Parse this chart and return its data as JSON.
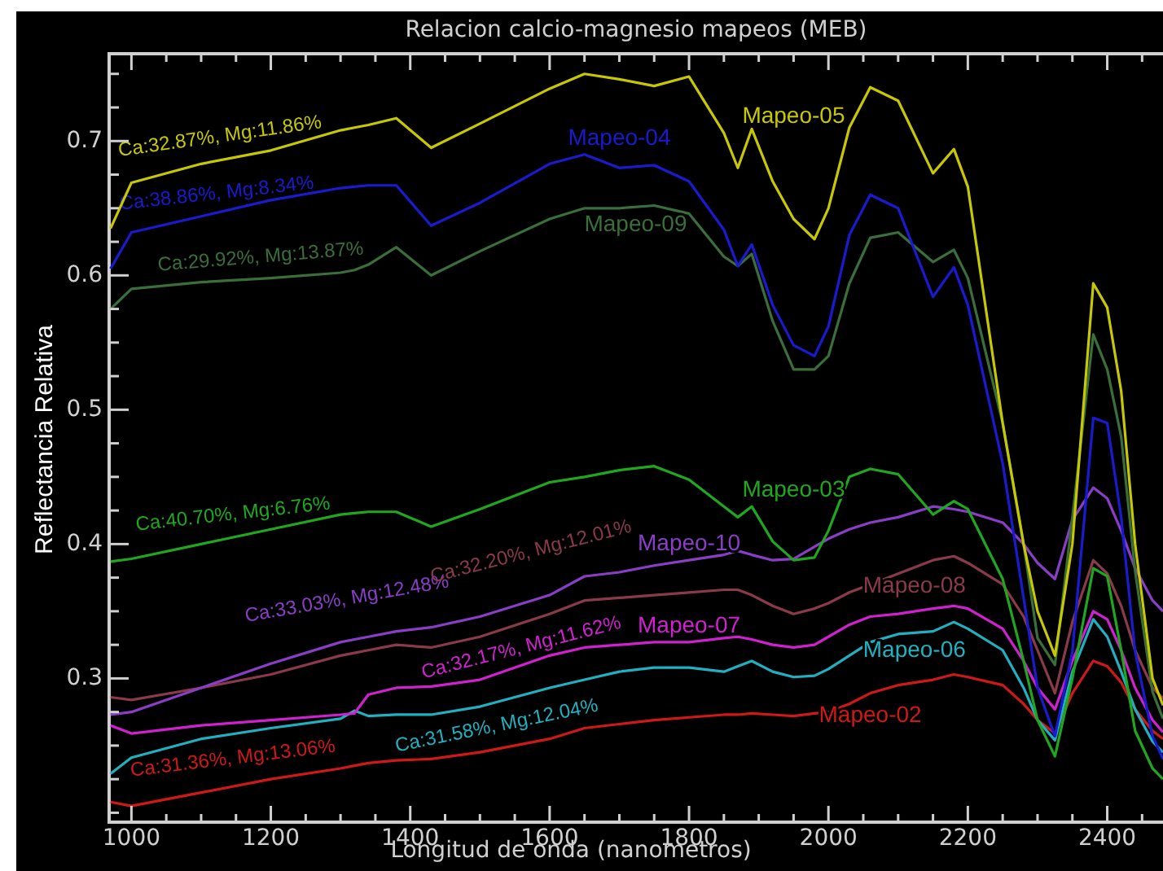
{
  "chart_data": {
    "type": "line",
    "title": "Relacion calcio-magnesio mapeos (MEB)",
    "xlabel": "Longitud de onda (nanometros)",
    "ylabel": "Reflectancia Relativa",
    "x": [
      970,
      1000,
      1100,
      1200,
      1300,
      1320,
      1340,
      1380,
      1430,
      1500,
      1600,
      1650,
      1700,
      1750,
      1800,
      1850,
      1870,
      1890,
      1920,
      1950,
      1980,
      2000,
      2030,
      2060,
      2100,
      2150,
      2180,
      2200,
      2250,
      2280,
      2300,
      2325,
      2350,
      2380,
      2400,
      2420,
      2440,
      2465,
      2480
    ],
    "series": [
      {
        "name": "Mapeo-05",
        "color": "#c8c800",
        "values": [
          0.635,
          0.669,
          0.683,
          0.693,
          0.708,
          0.71,
          0.712,
          0.717,
          0.695,
          0.713,
          0.739,
          0.75,
          0.746,
          0.741,
          0.748,
          0.706,
          0.68,
          0.709,
          0.67,
          0.642,
          0.627,
          0.65,
          0.71,
          0.74,
          0.73,
          0.676,
          0.694,
          0.666,
          0.49,
          0.4,
          0.35,
          0.317,
          0.4,
          0.594,
          0.576,
          0.514,
          0.4,
          0.3,
          0.28
        ]
      },
      {
        "name": "Mapeo-04",
        "color": "#1a1ad0",
        "values": [
          0.605,
          0.632,
          0.644,
          0.656,
          0.665,
          0.666,
          0.667,
          0.667,
          0.637,
          0.654,
          0.683,
          0.69,
          0.68,
          0.682,
          0.67,
          0.634,
          0.607,
          0.623,
          0.578,
          0.548,
          0.54,
          0.562,
          0.63,
          0.66,
          0.65,
          0.584,
          0.606,
          0.578,
          0.46,
          0.36,
          0.293,
          0.257,
          0.32,
          0.494,
          0.49,
          0.42,
          0.32,
          0.257,
          0.24
        ]
      },
      {
        "name": "Mapeo-09",
        "color": "#3a6e3a",
        "values": [
          0.575,
          0.59,
          0.595,
          0.598,
          0.602,
          0.604,
          0.608,
          0.621,
          0.6,
          0.618,
          0.642,
          0.65,
          0.65,
          0.652,
          0.646,
          0.614,
          0.607,
          0.616,
          0.566,
          0.53,
          0.53,
          0.54,
          0.594,
          0.628,
          0.632,
          0.61,
          0.619,
          0.598,
          0.49,
          0.4,
          0.33,
          0.31,
          0.42,
          0.556,
          0.53,
          0.48,
          0.38,
          0.29,
          0.27
        ]
      },
      {
        "name": "Mapeo-03",
        "color": "#1fa81f",
        "values": [
          0.387,
          0.389,
          0.4,
          0.411,
          0.422,
          0.423,
          0.424,
          0.424,
          0.413,
          0.426,
          0.446,
          0.45,
          0.455,
          0.458,
          0.448,
          0.428,
          0.42,
          0.428,
          0.402,
          0.388,
          0.39,
          0.41,
          0.45,
          0.456,
          0.452,
          0.422,
          0.432,
          0.426,
          0.374,
          0.313,
          0.269,
          0.242,
          0.3,
          0.382,
          0.376,
          0.321,
          0.261,
          0.233,
          0.225
        ]
      },
      {
        "name": "Mapeo-10",
        "color": "#8a3ec8",
        "values": [
          0.273,
          0.275,
          0.293,
          0.311,
          0.327,
          0.329,
          0.331,
          0.335,
          0.338,
          0.346,
          0.362,
          0.376,
          0.379,
          0.384,
          0.388,
          0.392,
          0.395,
          0.392,
          0.388,
          0.389,
          0.398,
          0.404,
          0.411,
          0.416,
          0.42,
          0.428,
          0.426,
          0.424,
          0.416,
          0.4,
          0.386,
          0.374,
          0.418,
          0.442,
          0.434,
          0.41,
          0.382,
          0.358,
          0.35
        ]
      },
      {
        "name": "Mapeo-08",
        "color": "#8a3a4a",
        "values": [
          0.286,
          0.284,
          0.293,
          0.303,
          0.317,
          0.319,
          0.321,
          0.325,
          0.323,
          0.331,
          0.348,
          0.358,
          0.36,
          0.362,
          0.364,
          0.366,
          0.366,
          0.362,
          0.354,
          0.348,
          0.352,
          0.356,
          0.364,
          0.37,
          0.378,
          0.388,
          0.391,
          0.386,
          0.37,
          0.346,
          0.321,
          0.289,
          0.342,
          0.388,
          0.378,
          0.354,
          0.321,
          0.293,
          0.285
        ]
      },
      {
        "name": "Mapeo-07",
        "color": "#d020d0",
        "values": [
          0.265,
          0.259,
          0.265,
          0.269,
          0.273,
          0.274,
          0.288,
          0.293,
          0.294,
          0.299,
          0.317,
          0.323,
          0.325,
          0.327,
          0.327,
          0.33,
          0.331,
          0.329,
          0.325,
          0.323,
          0.325,
          0.331,
          0.34,
          0.346,
          0.348,
          0.352,
          0.354,
          0.352,
          0.337,
          0.313,
          0.293,
          0.277,
          0.313,
          0.35,
          0.344,
          0.321,
          0.293,
          0.269,
          0.26
        ]
      },
      {
        "name": "Mapeo-06",
        "color": "#20b0c0",
        "values": [
          0.229,
          0.241,
          0.255,
          0.263,
          0.27,
          0.276,
          0.272,
          0.273,
          0.273,
          0.279,
          0.293,
          0.299,
          0.305,
          0.308,
          0.308,
          0.305,
          0.309,
          0.313,
          0.305,
          0.301,
          0.302,
          0.307,
          0.317,
          0.327,
          0.333,
          0.335,
          0.342,
          0.337,
          0.321,
          0.293,
          0.269,
          0.254,
          0.305,
          0.344,
          0.331,
          0.305,
          0.277,
          0.253,
          0.245
        ]
      },
      {
        "name": "Mapeo-02",
        "color": "#d01818",
        "values": [
          0.208,
          0.205,
          0.215,
          0.225,
          0.233,
          0.235,
          0.237,
          0.239,
          0.24,
          0.245,
          0.255,
          0.263,
          0.266,
          0.269,
          0.271,
          0.273,
          0.273,
          0.274,
          0.273,
          0.272,
          0.274,
          0.275,
          0.281,
          0.289,
          0.295,
          0.299,
          0.303,
          0.301,
          0.295,
          0.281,
          0.269,
          0.259,
          0.289,
          0.313,
          0.309,
          0.297,
          0.277,
          0.261,
          0.255
        ]
      }
    ],
    "annotations": [
      "Ca:32.87%, Mg:11.86%",
      "Ca:38.86%, Mg:8.34%",
      "Ca:29.92%, Mg:13.87%",
      "Ca:40.70%, Mg:6.76%",
      "Ca:33.03%, Mg:12.48%",
      "Ca:32.20%, Mg:12.01%",
      "Ca:32.17%, Mg:11.62%",
      "Ca:31.58%, Mg:12.04%",
      "Ca:31.36%, Mg:13.06%"
    ],
    "xlim": [
      968,
      2480
    ],
    "xticks": [
      1000,
      {
        "value": 1050,
        "label": null
      },
      {
        "value": 1100,
        "label": null
      },
      {
        "value": 1150,
        "label": null
      },
      1200,
      {
        "value": 1250,
        "label": null
      },
      {
        "value": 1300,
        "label": null
      },
      {
        "value": 1350,
        "label": null
      },
      1400,
      {
        "value": 1450,
        "label": null
      },
      {
        "value": 1500,
        "label": null
      },
      {
        "value": 1550,
        "label": null
      },
      1600,
      {
        "value": 1650,
        "label": null
      },
      {
        "value": 1700,
        "label": null
      },
      {
        "value": 1750,
        "label": null
      },
      1800,
      {
        "value": 1850,
        "label": null
      },
      {
        "value": 1900,
        "label": null
      },
      {
        "value": 1950,
        "label": null
      },
      2000,
      {
        "value": 2050,
        "label": null
      },
      {
        "value": 2100,
        "label": null
      },
      {
        "value": 2150,
        "label": null
      },
      2200,
      {
        "value": 2250,
        "label": null
      },
      {
        "value": 2300,
        "label": null
      },
      {
        "value": 2350,
        "label": null
      },
      2400,
      {
        "value": 2450,
        "label": null
      }
    ],
    "ylim": [
      0.193,
      0.765
    ],
    "yticks": [
      {
        "value": 0.2,
        "label": null
      },
      {
        "value": 0.225,
        "label": null
      },
      {
        "value": 0.25,
        "label": null
      },
      {
        "value": 0.275,
        "label": null
      },
      {
        "value": 0.3,
        "label": "0.3"
      },
      {
        "value": 0.325,
        "label": null
      },
      {
        "value": 0.35,
        "label": null
      },
      {
        "value": 0.375,
        "label": null
      },
      {
        "value": 0.4,
        "label": "0.4"
      },
      {
        "value": 0.425,
        "label": null
      },
      {
        "value": 0.45,
        "label": null
      },
      {
        "value": 0.475,
        "label": null
      },
      {
        "value": 0.5,
        "label": "0.5"
      },
      {
        "value": 0.525,
        "label": null
      },
      {
        "value": 0.55,
        "label": null
      },
      {
        "value": 0.575,
        "label": null
      },
      {
        "value": 0.6,
        "label": "0.6"
      },
      {
        "value": 0.625,
        "label": null
      },
      {
        "value": 0.65,
        "label": null
      },
      {
        "value": 0.675,
        "label": null
      },
      {
        "value": 0.7,
        "label": "0.7"
      },
      {
        "value": 0.725,
        "label": null
      },
      {
        "value": 0.75,
        "label": null
      }
    ],
    "grid": false,
    "legend": false,
    "marker": "none",
    "line_style": "solid"
  }
}
